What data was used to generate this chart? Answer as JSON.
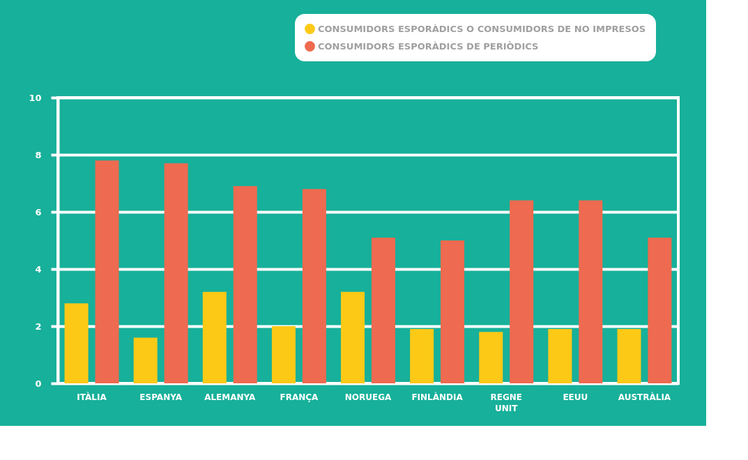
{
  "chart_data": {
    "type": "bar",
    "categories": [
      "ITÀLIA",
      "ESPANYA",
      "ALEMANYA",
      "FRANÇA",
      "NORUEGA",
      "FINLÀNDIA",
      "REGNE UNIT",
      "EEUU",
      "AUSTRÀLIA"
    ],
    "series": [
      {
        "name": "CONSUMIDORS ESPORÀDICS O CONSUMIDORS DE NO IMPRESOS",
        "color": "#fcc917",
        "values": [
          2.8,
          1.6,
          3.2,
          2.0,
          3.2,
          1.9,
          1.8,
          1.9,
          1.9
        ]
      },
      {
        "name": "CONSUMIDORS ESPORÀDICS DE PERIÒDICS",
        "color": "#ee6a50",
        "values": [
          7.8,
          7.7,
          6.9,
          6.8,
          5.1,
          5.0,
          6.4,
          6.4,
          5.1
        ]
      }
    ],
    "ylim": [
      0,
      10
    ],
    "yticks": [
      0,
      2,
      4,
      6,
      8,
      10
    ],
    "grid": "y",
    "legend": "top right"
  }
}
